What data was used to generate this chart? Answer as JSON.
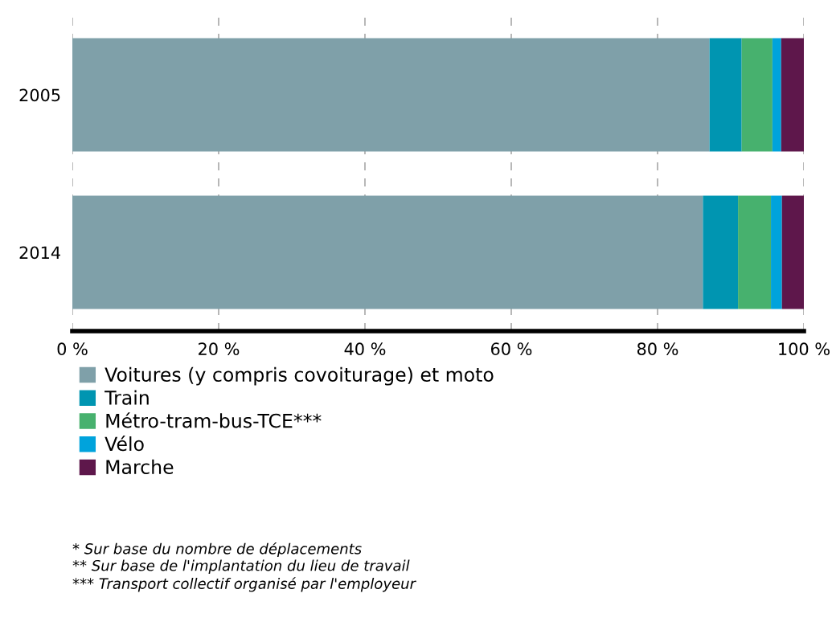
{
  "chart_data": {
    "type": "bar",
    "orientation": "horizontal",
    "stacked": true,
    "categories": [
      "2005",
      "2014"
    ],
    "series": [
      {
        "name": "Voitures (y compris covoiturage) et moto",
        "color": "#7fa0a9",
        "values": [
          87.1,
          86.2
        ]
      },
      {
        "name": "Train",
        "color": "#0095b1",
        "values": [
          4.4,
          4.8
        ]
      },
      {
        "name": "Métro-tram-bus-TCE***",
        "color": "#47b16e",
        "values": [
          4.2,
          4.5
        ]
      },
      {
        "name": "Vélo",
        "color": "#00a3dc",
        "values": [
          1.2,
          1.5
        ]
      },
      {
        "name": "Marche",
        "color": "#5e174b",
        "values": [
          3.1,
          3.0
        ]
      }
    ],
    "xlim": [
      0,
      100
    ],
    "xticks": [
      {
        "value": 0,
        "label": "0 %"
      },
      {
        "value": 20,
        "label": "20 %"
      },
      {
        "value": 40,
        "label": "40 %"
      },
      {
        "value": 60,
        "label": "60 %"
      },
      {
        "value": 80,
        "label": "80 %"
      },
      {
        "value": 100,
        "label": "100 %"
      }
    ],
    "grid": "x",
    "legend": "bottom",
    "annotations": [
      "* Sur base du nombre de déplacements",
      "** Sur base de l'implantation du lieu de travail",
      "*** Transport collectif organisé par l'employeur"
    ]
  }
}
